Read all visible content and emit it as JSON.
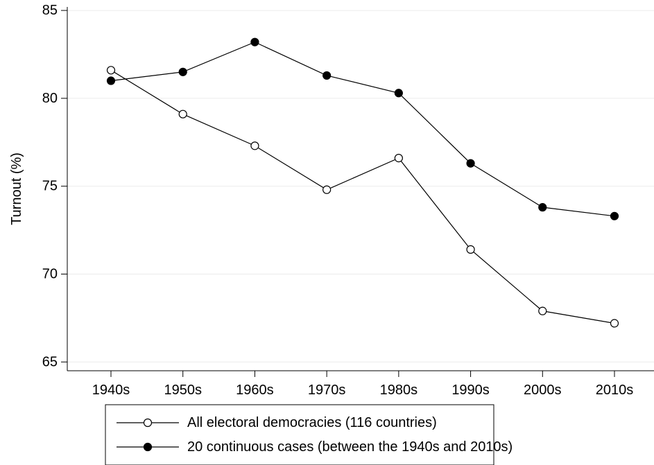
{
  "chart_data": {
    "type": "line",
    "title": "",
    "xlabel": "",
    "ylabel": "Turnout (%)",
    "categories": [
      "1940s",
      "1950s",
      "1960s",
      "1970s",
      "1980s",
      "1990s",
      "2000s",
      "2010s"
    ],
    "ylim": [
      64.5,
      85.2
    ],
    "yticks": [
      65,
      70,
      75,
      80,
      85
    ],
    "grid": true,
    "legend_position": "bottom",
    "series": [
      {
        "name": "All electoral democracies (116 countries)",
        "marker": "hollow-circle",
        "values": [
          81.6,
          79.1,
          77.3,
          74.8,
          76.6,
          71.4,
          67.9,
          67.2
        ]
      },
      {
        "name": "20 continuous cases (between the 1940s and 2010s)",
        "marker": "filled-circle",
        "values": [
          81.0,
          81.5,
          83.2,
          81.3,
          80.3,
          76.3,
          73.8,
          73.3
        ]
      }
    ],
    "colors": {
      "line": "#000000",
      "grid": "#ebebeb",
      "axis": "#000000"
    }
  }
}
